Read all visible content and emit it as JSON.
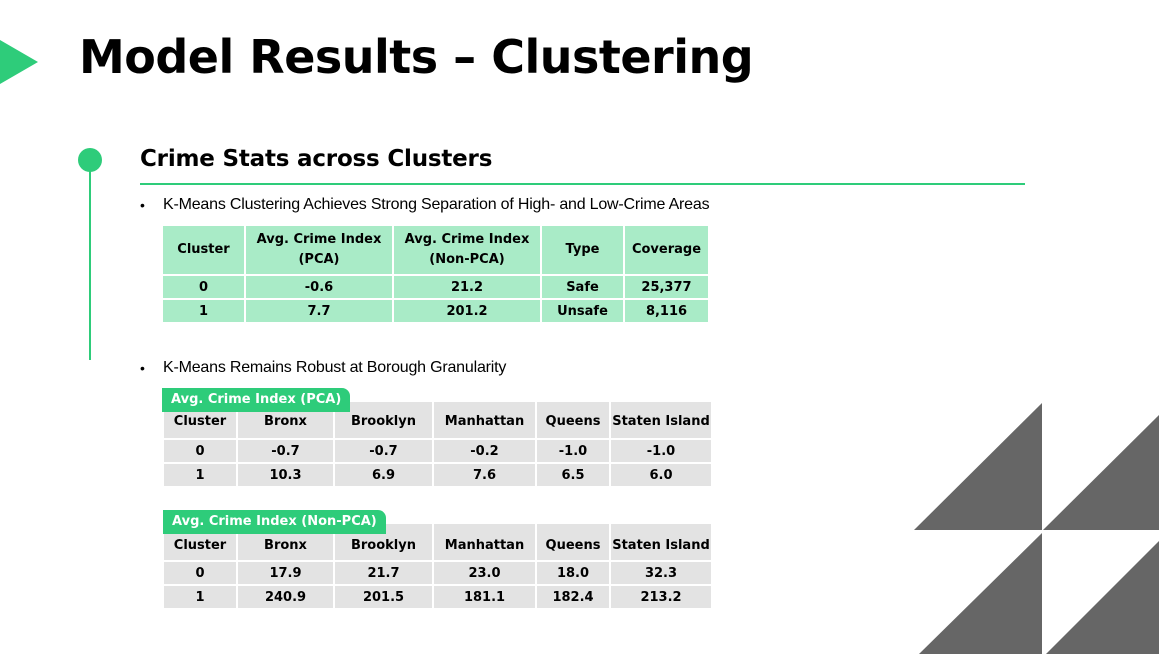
{
  "title": "Model Results – Clustering",
  "section": {
    "heading": "Crime Stats across Clusters",
    "bullet1": "K-Means Clustering Achieves Strong Separation of High- and Low-Crime Areas",
    "bullet2": "K-Means Remains Robust at Borough Granularity",
    "bullet_symbol": "•"
  },
  "summary_table": {
    "headers": [
      "Cluster",
      "Avg. Crime Index (PCA)",
      "Avg. Crime Index (Non-PCA)",
      "Type",
      "Coverage"
    ],
    "header_lines": [
      [
        "Cluster"
      ],
      [
        "Avg. Crime Index",
        "(PCA)"
      ],
      [
        "Avg. Crime Index",
        "(Non-PCA)"
      ],
      [
        "Type"
      ],
      [
        "Coverage"
      ]
    ],
    "rows": [
      [
        "0",
        "-0.6",
        "21.2",
        "Safe",
        "25,377"
      ],
      [
        "1",
        "7.7",
        "201.2",
        "Unsafe",
        "8,116"
      ]
    ]
  },
  "pca_table": {
    "tag": "Avg. Crime Index (PCA)",
    "headers": [
      "Cluster",
      "Bronx",
      "Brooklyn",
      "Manhattan",
      "Queens",
      "Staten Island"
    ],
    "rows": [
      [
        "0",
        "-0.7",
        "-0.7",
        "-0.2",
        "-1.0",
        "-1.0"
      ],
      [
        "1",
        "10.3",
        "6.9",
        "7.6",
        "6.5",
        "6.0"
      ]
    ]
  },
  "nonpca_table": {
    "tag": "Avg. Crime Index (Non-PCA)",
    "headers": [
      "Cluster",
      "Bronx",
      "Brooklyn",
      "Manhattan",
      "Queens",
      "Staten Island"
    ],
    "rows": [
      [
        "0",
        "17.9",
        "21.7",
        "23.0",
        "18.0",
        "32.3"
      ],
      [
        "1",
        "240.9",
        "201.5",
        "181.1",
        "182.4",
        "213.2"
      ]
    ]
  },
  "colors": {
    "accent": "#2ecc7a",
    "summary_cell": "#a9ebc7",
    "borough_cell": "#e3e3e3",
    "decoration": "#666666"
  }
}
